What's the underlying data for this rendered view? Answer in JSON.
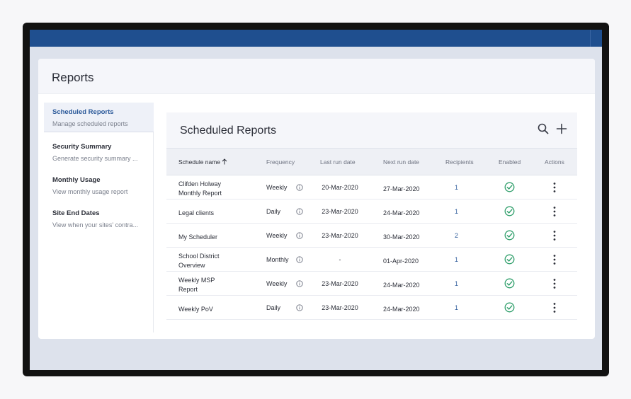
{
  "panel": {
    "title": "Reports"
  },
  "sidebar": {
    "items": [
      {
        "label": "Scheduled Reports",
        "sub": "Manage scheduled reports"
      },
      {
        "label": "Security Summary",
        "sub": "Generate security summary ..."
      },
      {
        "label": "Monthly Usage",
        "sub": "View monthly usage report"
      },
      {
        "label": "Site End Dates",
        "sub": "View when your sites' contra..."
      }
    ]
  },
  "card": {
    "title": "Scheduled Reports",
    "icons": {
      "search": "search-icon",
      "add": "plus-icon"
    }
  },
  "table": {
    "headers": {
      "name": "Schedule name",
      "frequency": "Frequency",
      "last_run": "Last run date",
      "next_run": "Next run date",
      "recipients": "Recipients",
      "enabled": "Enabled",
      "actions": "Actions"
    },
    "rows": [
      {
        "name": "Clifden Holway Monthly Report",
        "frequency": "Weekly",
        "last_run": "20-Mar-2020",
        "next_run": "27-Mar-2020",
        "recipients": "1",
        "enabled": true
      },
      {
        "name": "Legal clients",
        "frequency": "Daily",
        "last_run": "23-Mar-2020",
        "next_run": "24-Mar-2020",
        "recipients": "1",
        "enabled": true
      },
      {
        "name": "My Scheduler",
        "frequency": "Weekly",
        "last_run": "23-Mar-2020",
        "next_run": "30-Mar-2020",
        "recipients": "2",
        "enabled": true
      },
      {
        "name": "School District Overview",
        "frequency": "Monthly",
        "last_run": "-",
        "next_run": "01-Apr-2020",
        "recipients": "1",
        "enabled": true
      },
      {
        "name": "Weekly MSP Report",
        "frequency": "Weekly",
        "last_run": "23-Mar-2020",
        "next_run": "24-Mar-2020",
        "recipients": "1",
        "enabled": true
      },
      {
        "name": "Weekly PoV",
        "frequency": "Daily",
        "last_run": "23-Mar-2020",
        "next_run": "24-Mar-2020",
        "recipients": "1",
        "enabled": true
      }
    ]
  },
  "colors": {
    "topbar": "#1f4f8f",
    "accent": "#2c5a9a",
    "success": "#2e9e6a"
  }
}
